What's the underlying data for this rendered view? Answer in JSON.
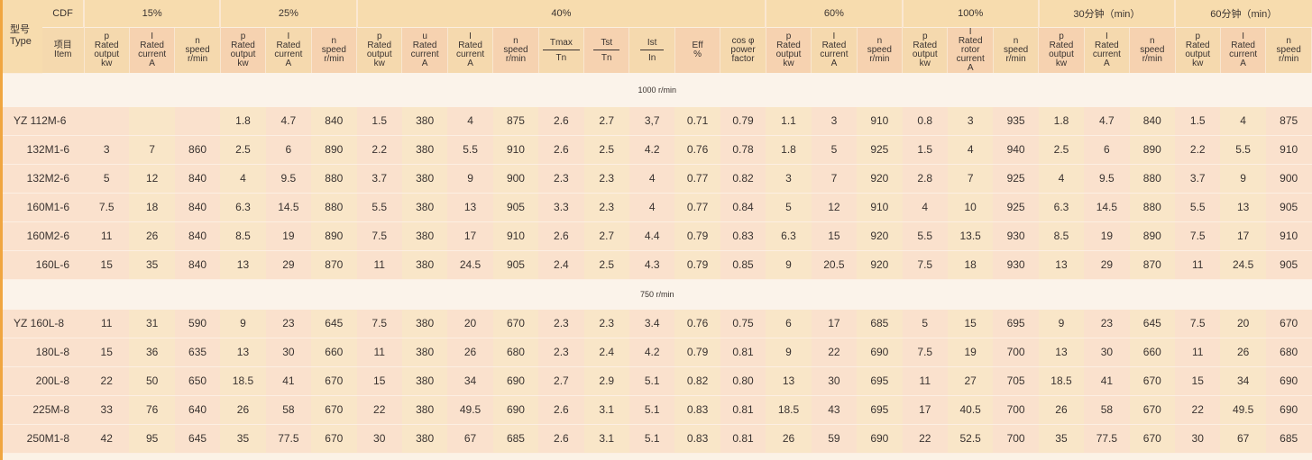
{
  "header": {
    "cdf_label": "CDF",
    "type_label": [
      "型号",
      "Type"
    ],
    "item_label": [
      "项目",
      "Item"
    ],
    "groups": [
      {
        "label": "15%",
        "span": 3
      },
      {
        "label": "25%",
        "span": 3
      },
      {
        "label": "40%",
        "span": 9
      },
      {
        "label": "60%",
        "span": 3
      },
      {
        "label": "100%",
        "span": 3
      },
      {
        "label": "30分钟（min）",
        "span": 3
      },
      {
        "label": "60分钟（min）",
        "span": 3
      }
    ],
    "columns": [
      {
        "lines": [
          "p",
          "Rated",
          "output",
          "kw"
        ]
      },
      {
        "lines": [
          "I",
          "Rated",
          "current",
          "A"
        ]
      },
      {
        "lines": [
          "n",
          "speed",
          "r/min"
        ]
      },
      {
        "lines": [
          "p",
          "Rated",
          "output",
          "kw"
        ]
      },
      {
        "lines": [
          "I",
          "Rated",
          "current",
          "A"
        ]
      },
      {
        "lines": [
          "n",
          "speed",
          "r/min"
        ]
      },
      {
        "lines": [
          "p",
          "Rated",
          "output",
          "kw"
        ]
      },
      {
        "lines": [
          "u",
          "Rated",
          "current",
          "A"
        ]
      },
      {
        "lines": [
          "I",
          "Rated",
          "current",
          "A"
        ]
      },
      {
        "lines": [
          "n",
          "speed",
          "r/min"
        ]
      },
      {
        "num": "Tmax",
        "den": "Tn"
      },
      {
        "num": "Tst",
        "den": "Tn"
      },
      {
        "num": "Ist",
        "den": "In"
      },
      {
        "lines": [
          "Eff",
          "%"
        ]
      },
      {
        "lines": [
          "cos φ",
          "power",
          "factor"
        ]
      },
      {
        "lines": [
          "p",
          "Rated",
          "output",
          "kw"
        ]
      },
      {
        "lines": [
          "I",
          "Rated",
          "current",
          "A"
        ]
      },
      {
        "lines": [
          "n",
          "speed",
          "r/min"
        ]
      },
      {
        "lines": [
          "p",
          "Rated",
          "output",
          "kw"
        ]
      },
      {
        "lines": [
          "I",
          "Rated",
          "rotor",
          "current",
          "A"
        ]
      },
      {
        "lines": [
          "n",
          "speed",
          "r/min"
        ]
      },
      {
        "lines": [
          "p",
          "Rated",
          "output",
          "kw"
        ]
      },
      {
        "lines": [
          "I",
          "Rated",
          "current",
          "A"
        ]
      },
      {
        "lines": [
          "n",
          "speed",
          "r/min"
        ]
      },
      {
        "lines": [
          "p",
          "Rated",
          "output",
          "kw"
        ]
      },
      {
        "lines": [
          "I",
          "Rated",
          "current",
          "A"
        ]
      },
      {
        "lines": [
          "n",
          "speed",
          "r/min"
        ]
      }
    ]
  },
  "sections": [
    {
      "label": "1000 r/min",
      "rows": [
        {
          "type": "YZ 112M-6",
          "values": [
            "",
            "",
            "",
            "1.8",
            "4.7",
            "840",
            "1.5",
            "380",
            "4",
            "875",
            "2.6",
            "2.7",
            "3,7",
            "0.71",
            "0.79",
            "1.1",
            "3",
            "910",
            "0.8",
            "3",
            "935",
            "1.8",
            "4.7",
            "840",
            "1.5",
            "4",
            "875"
          ]
        },
        {
          "type": "132M1-6",
          "values": [
            "3",
            "7",
            "860",
            "2.5",
            "6",
            "890",
            "2.2",
            "380",
            "5.5",
            "910",
            "2.6",
            "2.5",
            "4.2",
            "0.76",
            "0.78",
            "1.8",
            "5",
            "925",
            "1.5",
            "4",
            "940",
            "2.5",
            "6",
            "890",
            "2.2",
            "5.5",
            "910"
          ]
        },
        {
          "type": "132M2-6",
          "values": [
            "5",
            "12",
            "840",
            "4",
            "9.5",
            "880",
            "3.7",
            "380",
            "9",
            "900",
            "2.3",
            "2.3",
            "4",
            "0.77",
            "0.82",
            "3",
            "7",
            "920",
            "2.8",
            "7",
            "925",
            "4",
            "9.5",
            "880",
            "3.7",
            "9",
            "900"
          ]
        },
        {
          "type": "160M1-6",
          "values": [
            "7.5",
            "18",
            "840",
            "6.3",
            "14.5",
            "880",
            "5.5",
            "380",
            "13",
            "905",
            "3.3",
            "2.3",
            "4",
            "0.77",
            "0.84",
            "5",
            "12",
            "910",
            "4",
            "10",
            "925",
            "6.3",
            "14.5",
            "880",
            "5.5",
            "13",
            "905"
          ]
        },
        {
          "type": "160M2-6",
          "values": [
            "11",
            "26",
            "840",
            "8.5",
            "19",
            "890",
            "7.5",
            "380",
            "17",
            "910",
            "2.6",
            "2.7",
            "4.4",
            "0.79",
            "0.83",
            "6.3",
            "15",
            "920",
            "5.5",
            "13.5",
            "930",
            "8.5",
            "19",
            "890",
            "7.5",
            "17",
            "910"
          ]
        },
        {
          "type": "160L-6",
          "values": [
            "15",
            "35",
            "840",
            "13",
            "29",
            "870",
            "11",
            "380",
            "24.5",
            "905",
            "2.4",
            "2.5",
            "4.3",
            "0.79",
            "0.85",
            "9",
            "20.5",
            "920",
            "7.5",
            "18",
            "930",
            "13",
            "29",
            "870",
            "11",
            "24.5",
            "905"
          ]
        }
      ]
    },
    {
      "label": "750 r/min",
      "rows": [
        {
          "type": "YZ 160L-8",
          "values": [
            "11",
            "31",
            "590",
            "9",
            "23",
            "645",
            "7.5",
            "380",
            "20",
            "670",
            "2.3",
            "2.3",
            "3.4",
            "0.76",
            "0.75",
            "6",
            "17",
            "685",
            "5",
            "15",
            "695",
            "9",
            "23",
            "645",
            "7.5",
            "20",
            "670"
          ]
        },
        {
          "type": "180L-8",
          "values": [
            "15",
            "36",
            "635",
            "13",
            "30",
            "660",
            "11",
            "380",
            "26",
            "680",
            "2.3",
            "2.4",
            "4.2",
            "0.79",
            "0.81",
            "9",
            "22",
            "690",
            "7.5",
            "19",
            "700",
            "13",
            "30",
            "660",
            "11",
            "26",
            "680"
          ]
        },
        {
          "type": "200L-8",
          "values": [
            "22",
            "50",
            "650",
            "18.5",
            "41",
            "670",
            "15",
            "380",
            "34",
            "690",
            "2.7",
            "2.9",
            "5.1",
            "0.82",
            "0.80",
            "13",
            "30",
            "695",
            "11",
            "27",
            "705",
            "18.5",
            "41",
            "670",
            "15",
            "34",
            "690"
          ]
        },
        {
          "type": "225M-8",
          "values": [
            "33",
            "76",
            "640",
            "26",
            "58",
            "670",
            "22",
            "380",
            "49.5",
            "690",
            "2.6",
            "3.1",
            "5.1",
            "0.83",
            "0.81",
            "18.5",
            "43",
            "695",
            "17",
            "40.5",
            "700",
            "26",
            "58",
            "670",
            "22",
            "49.5",
            "690"
          ]
        },
        {
          "type": "250M1-8",
          "values": [
            "42",
            "95",
            "645",
            "35",
            "77.5",
            "670",
            "30",
            "380",
            "67",
            "685",
            "2.6",
            "3.1",
            "5.1",
            "0.83",
            "0.81",
            "26",
            "59",
            "690",
            "22",
            "52.5",
            "700",
            "35",
            "77.5",
            "670",
            "30",
            "67",
            "685"
          ]
        }
      ]
    }
  ]
}
